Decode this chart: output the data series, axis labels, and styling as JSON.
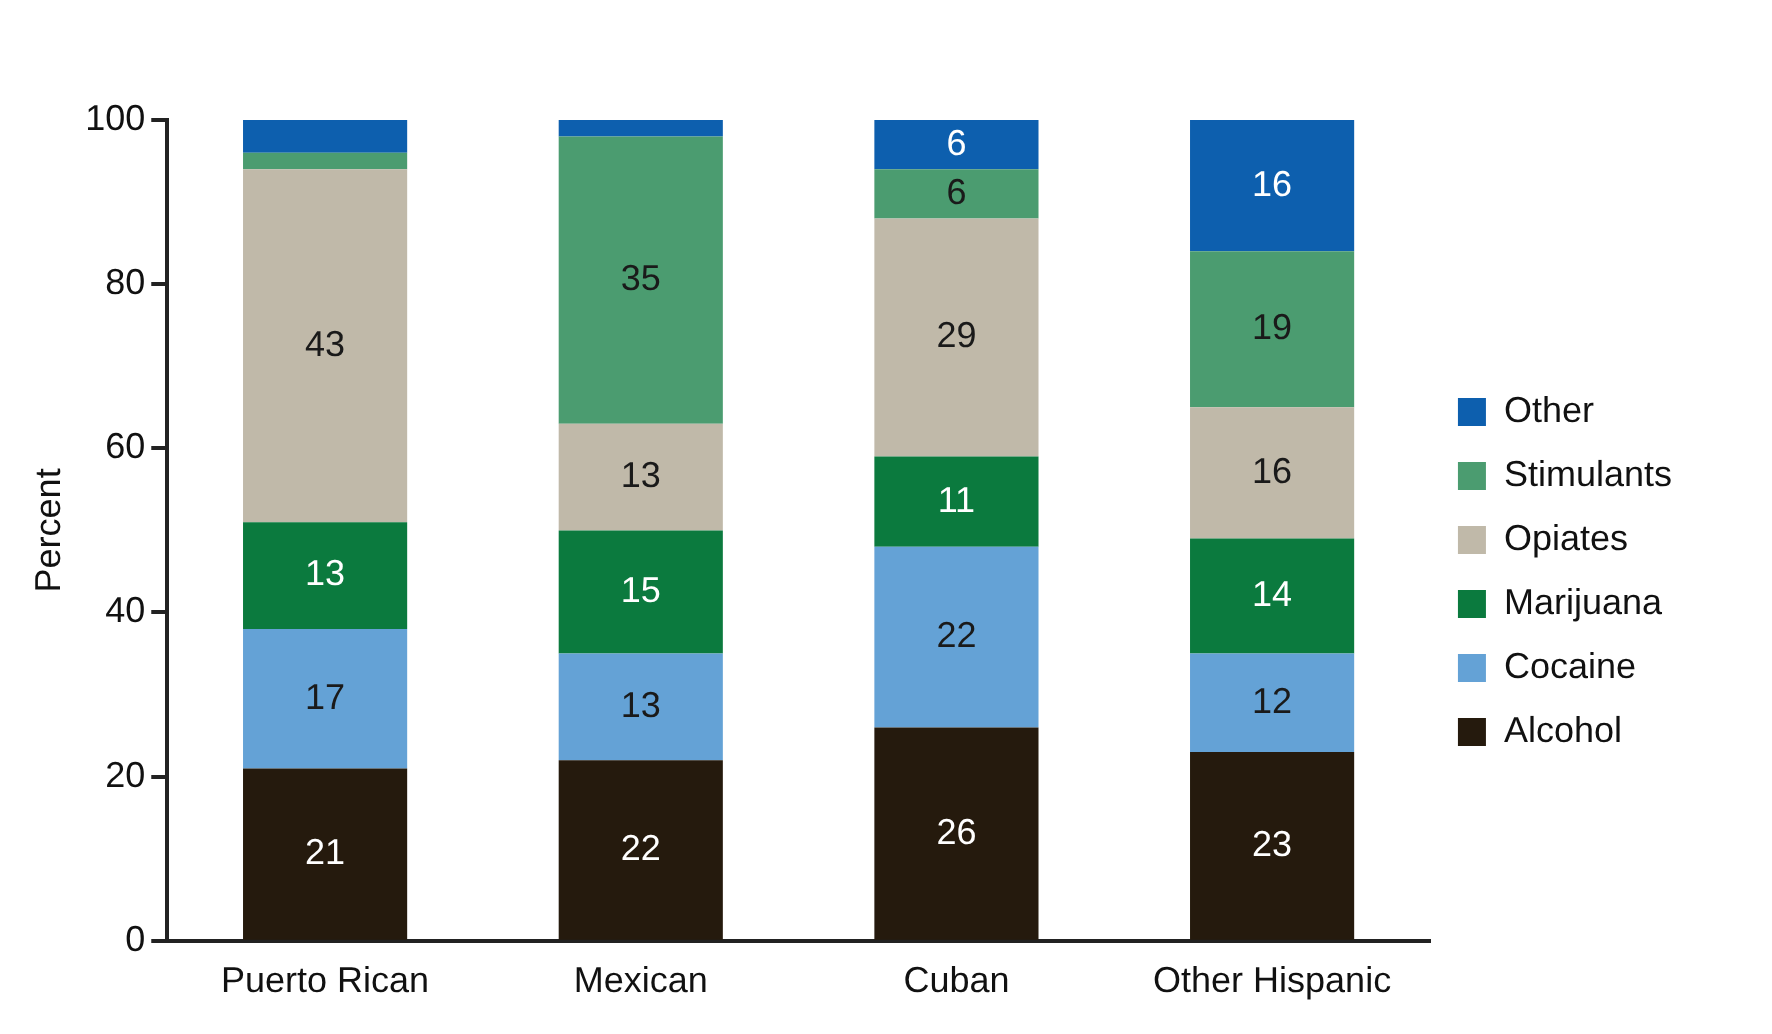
{
  "chart_data": {
    "type": "bar",
    "stacked": true,
    "ylabel": "Percent",
    "categories": [
      "Puerto Rican",
      "Mexican",
      "Cuban",
      "Other Hispanic"
    ],
    "ylim": [
      0,
      100
    ],
    "yticks": [
      0,
      20,
      40,
      60,
      80,
      100
    ],
    "grid": false,
    "legend": "right",
    "series": [
      {
        "name": "Alcohol",
        "color": "#251a0d",
        "values": [
          21,
          22,
          26,
          23
        ],
        "value_labels": [
          "21",
          "22",
          "26",
          "23"
        ]
      },
      {
        "name": "Cocaine",
        "color": "#64a2d6",
        "values": [
          17,
          13,
          22,
          12
        ],
        "value_labels": [
          "17",
          "13",
          "22",
          "12"
        ]
      },
      {
        "name": "Marijuana",
        "color": "#0b7a3e",
        "values": [
          13,
          15,
          11,
          14
        ],
        "value_labels": [
          "13",
          "15",
          "11",
          "14"
        ]
      },
      {
        "name": "Opiates",
        "color": "#c0b9a9",
        "values": [
          43,
          13,
          29,
          16
        ],
        "value_labels": [
          "43",
          "13",
          "29",
          "16"
        ]
      },
      {
        "name": "Stimulants",
        "color": "#4b9c70",
        "values": [
          2,
          35,
          6,
          19
        ],
        "value_labels": [
          null,
          "35",
          "6",
          "19"
        ]
      },
      {
        "name": "Other",
        "color": "#0d5fae",
        "values": [
          4,
          2,
          6,
          16
        ],
        "value_labels": [
          null,
          null,
          "6",
          "16"
        ]
      }
    ]
  }
}
